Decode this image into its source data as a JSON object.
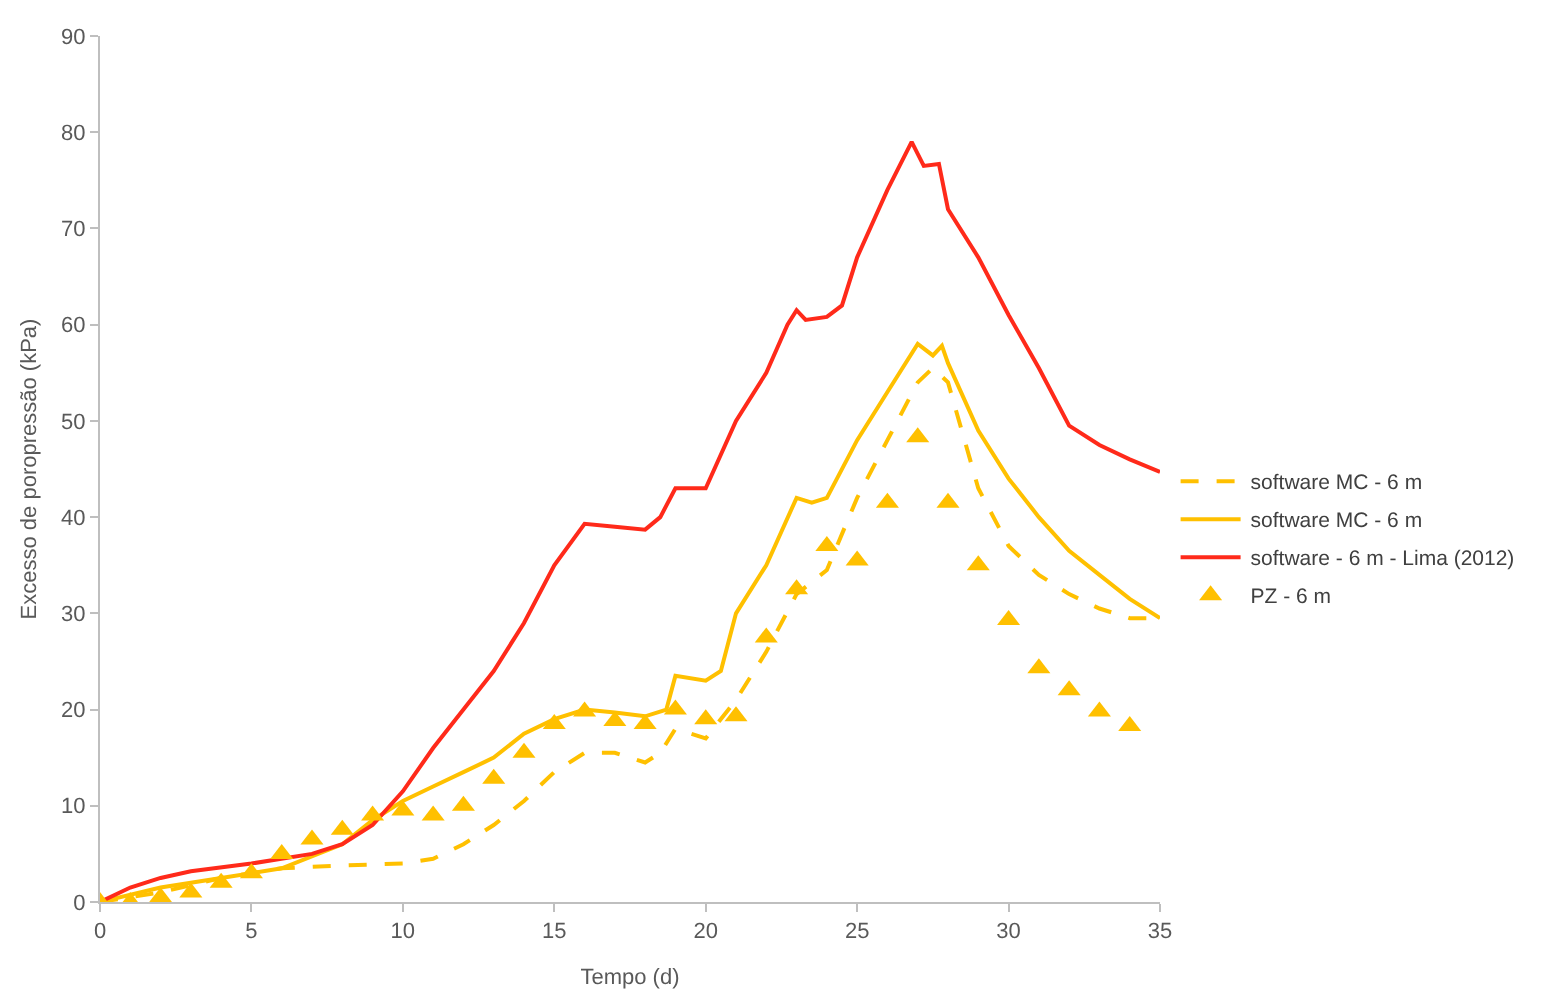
{
  "chart_data": {
    "type": "line",
    "xlabel": "Tempo (d)",
    "ylabel": "Excesso de poropressão (kPa)",
    "xlim": [
      0,
      35
    ],
    "xticks": [
      0,
      5,
      10,
      15,
      20,
      25,
      30,
      35
    ],
    "ylim": [
      0,
      90
    ],
    "yticks": [
      0,
      10,
      20,
      30,
      40,
      50,
      60,
      70,
      80,
      90
    ],
    "grid": false,
    "legend": "right",
    "series": [
      {
        "name": "software MC - 6 m",
        "color": "#ffc000",
        "line_style": "dashed",
        "marker": "none",
        "x": [
          0,
          2,
          4,
          6,
          8,
          10,
          11,
          12,
          13,
          14,
          15,
          16,
          17,
          18,
          18.5,
          19,
          20,
          21,
          22,
          23,
          24,
          25,
          26,
          27,
          27.5,
          28,
          29,
          30,
          31,
          32,
          33,
          34,
          35
        ],
        "values": [
          0,
          1,
          2.5,
          3.5,
          3.8,
          4,
          4.5,
          6,
          8,
          10.5,
          13.5,
          15.5,
          15.5,
          14.5,
          15.5,
          18,
          17,
          21,
          26,
          32,
          34.5,
          42,
          48,
          54,
          55.5,
          54,
          43,
          37,
          34,
          32,
          30.5,
          29.5,
          29.5
        ]
      },
      {
        "name": "software MC - 6 m",
        "color": "#ffc000",
        "line_style": "solid",
        "marker": "none",
        "x": [
          0,
          2,
          4,
          6,
          8,
          9,
          10,
          11,
          12,
          13,
          14,
          15,
          16,
          17,
          18,
          18.7,
          19,
          20,
          20.5,
          21,
          22,
          23,
          23.5,
          24,
          25,
          26,
          27,
          27.5,
          27.8,
          28,
          29,
          30,
          31,
          32,
          33,
          34,
          35
        ],
        "values": [
          0,
          1.5,
          2.5,
          3.5,
          6,
          8.5,
          10.5,
          12,
          13.5,
          15,
          17.5,
          19,
          20,
          19.7,
          19.3,
          20,
          23.5,
          23,
          24,
          30,
          35,
          42,
          41.5,
          42,
          48,
          53,
          58,
          56.8,
          57.8,
          56,
          49,
          44,
          40,
          36.5,
          34,
          31.5,
          29.5
        ]
      },
      {
        "name": "software - 6 m - Lima (2012)",
        "color": "#ff2a1a",
        "line_style": "solid",
        "marker": "none",
        "x": [
          0,
          1,
          2,
          3,
          5,
          7,
          8,
          9,
          10,
          11,
          12,
          13,
          14,
          15,
          16,
          17,
          18,
          18.5,
          19,
          20,
          21,
          22,
          22.7,
          23,
          23.3,
          24,
          24.5,
          25,
          26,
          26.8,
          27.2,
          27.7,
          28,
          29,
          30,
          31,
          32,
          33,
          34,
          35
        ],
        "values": [
          0,
          1.5,
          2.5,
          3.2,
          4,
          5,
          6,
          8,
          11.5,
          16,
          20,
          24,
          29,
          35,
          39.3,
          39,
          38.7,
          40,
          43,
          43,
          50,
          55,
          60,
          61.5,
          60.5,
          60.8,
          62,
          67,
          74,
          79,
          76.5,
          76.7,
          72,
          67,
          61,
          55.5,
          49.5,
          47.5,
          46,
          44.7
        ]
      },
      {
        "name": "PZ - 6 m",
        "type": "scatter",
        "color": "#ffc000",
        "marker": "triangle",
        "x": [
          0,
          1,
          2,
          3,
          4,
          5,
          6,
          7,
          8,
          9,
          10,
          11,
          12,
          13,
          14,
          15,
          16,
          17,
          18,
          19,
          20,
          21,
          22,
          23,
          24,
          25,
          26,
          27,
          28,
          29,
          30,
          31,
          32,
          33,
          34
        ],
        "values": [
          0,
          0,
          0.5,
          1,
          2,
          3,
          5,
          6.5,
          7.5,
          9,
          9.5,
          9,
          10,
          12.8,
          15.5,
          18.5,
          19.8,
          18.8,
          18.5,
          20,
          19,
          19.3,
          27.5,
          32.5,
          37,
          35.5,
          41.5,
          48.3,
          41.5,
          35,
          29.3,
          24.3,
          22,
          19.8,
          18.3
        ]
      }
    ]
  }
}
